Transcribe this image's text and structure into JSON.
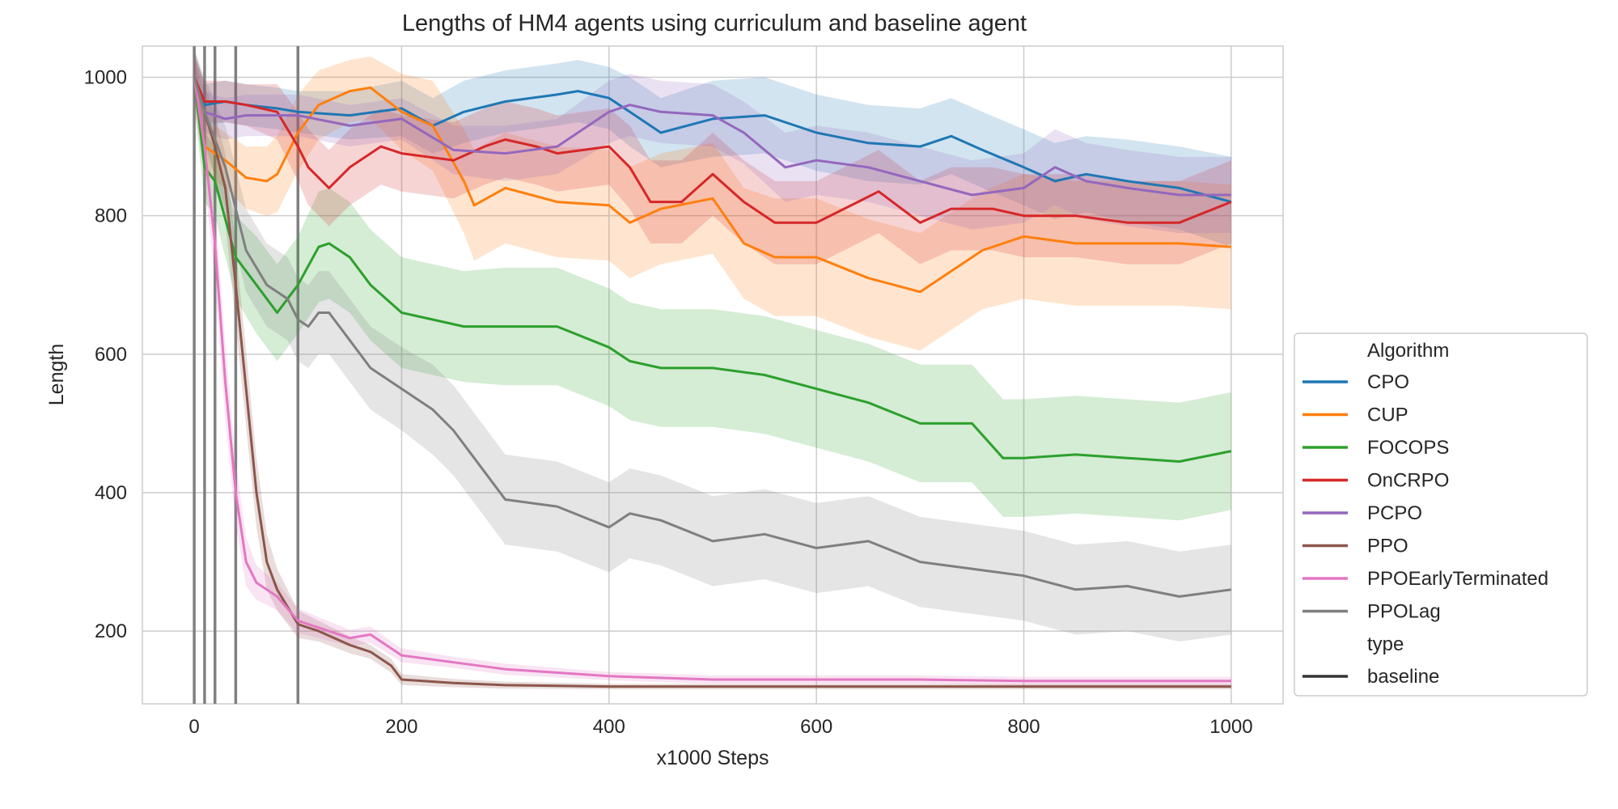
{
  "chart_data": {
    "type": "line",
    "title": "Lengths of HM4 agents using curriculum and baseline agent",
    "xlabel": "x1000 Steps",
    "ylabel": "Length",
    "xlim": [
      -50,
      1050
    ],
    "ylim": [
      95,
      1045
    ],
    "xticks": [
      0,
      200,
      400,
      600,
      800,
      1000
    ],
    "yticks": [
      200,
      400,
      600,
      800,
      1000
    ],
    "xtick_labels": [
      "0",
      "200",
      "400",
      "600",
      "800",
      "1000"
    ],
    "ytick_labels": [
      "200",
      "400",
      "600",
      "800",
      "1000"
    ],
    "grid": true,
    "confidence_bands": true,
    "vertical_lines_x": [
      0,
      10,
      20,
      40,
      100
    ],
    "legend": {
      "placement": "outside right",
      "hue_title": "Algorithm",
      "style_title": "type",
      "style_entries": [
        "baseline"
      ]
    },
    "series": [
      {
        "name": "CPO",
        "color": "#1f77b4",
        "x": [
          0,
          10,
          30,
          50,
          80,
          100,
          150,
          200,
          230,
          260,
          300,
          350,
          370,
          400,
          420,
          450,
          500,
          550,
          600,
          650,
          700,
          730,
          760,
          800,
          830,
          860,
          900,
          950,
          1000
        ],
        "y": [
          1000,
          960,
          965,
          960,
          955,
          950,
          945,
          955,
          930,
          950,
          965,
          975,
          980,
          970,
          950,
          920,
          940,
          945,
          920,
          905,
          900,
          915,
          895,
          870,
          850,
          860,
          850,
          840,
          820
        ],
        "band": [
          40,
          30,
          30,
          30,
          30,
          30,
          35,
          40,
          40,
          45,
          45,
          45,
          45,
          45,
          50,
          50,
          55,
          55,
          55,
          55,
          55,
          55,
          55,
          55,
          55,
          55,
          60,
          60,
          65
        ]
      },
      {
        "name": "CUP",
        "color": "#ff7f0e",
        "x": [
          0,
          10,
          30,
          50,
          70,
          80,
          100,
          120,
          150,
          170,
          200,
          230,
          260,
          270,
          300,
          350,
          400,
          420,
          450,
          500,
          530,
          560,
          600,
          650,
          700,
          730,
          760,
          800,
          850,
          900,
          950,
          1000
        ],
        "y": [
          1000,
          900,
          880,
          855,
          850,
          860,
          920,
          960,
          980,
          985,
          950,
          930,
          850,
          815,
          840,
          820,
          815,
          790,
          810,
          825,
          760,
          740,
          740,
          710,
          690,
          720,
          750,
          770,
          760,
          760,
          760,
          755
        ],
        "band": [
          40,
          40,
          40,
          45,
          50,
          55,
          55,
          50,
          45,
          45,
          55,
          65,
          75,
          80,
          80,
          80,
          80,
          80,
          80,
          80,
          80,
          85,
          85,
          85,
          85,
          85,
          85,
          90,
          90,
          90,
          90,
          90
        ]
      },
      {
        "name": "FOCOPS",
        "color": "#2ca02c",
        "x": [
          0,
          10,
          20,
          40,
          60,
          80,
          100,
          120,
          130,
          150,
          170,
          200,
          230,
          260,
          300,
          350,
          400,
          420,
          450,
          500,
          550,
          600,
          650,
          700,
          750,
          780,
          800,
          850,
          900,
          950,
          1000
        ],
        "y": [
          1000,
          870,
          850,
          740,
          700,
          660,
          700,
          755,
          760,
          740,
          700,
          660,
          650,
          640,
          640,
          640,
          610,
          590,
          580,
          580,
          570,
          550,
          530,
          500,
          500,
          450,
          450,
          455,
          450,
          445,
          460
        ],
        "band": [
          40,
          50,
          50,
          60,
          70,
          70,
          70,
          80,
          80,
          80,
          80,
          80,
          80,
          80,
          85,
          85,
          85,
          85,
          85,
          85,
          85,
          85,
          85,
          85,
          85,
          85,
          85,
          85,
          85,
          85,
          85
        ]
      },
      {
        "name": "OnCRPO",
        "color": "#d62728",
        "x": [
          0,
          10,
          30,
          50,
          80,
          100,
          110,
          130,
          150,
          180,
          200,
          250,
          280,
          300,
          330,
          350,
          400,
          420,
          440,
          470,
          500,
          530,
          560,
          600,
          640,
          660,
          700,
          730,
          770,
          800,
          850,
          900,
          950,
          1000
        ],
        "y": [
          1000,
          965,
          965,
          960,
          950,
          900,
          870,
          840,
          870,
          900,
          890,
          880,
          900,
          910,
          900,
          890,
          900,
          870,
          820,
          820,
          860,
          820,
          790,
          790,
          820,
          835,
          790,
          810,
          810,
          800,
          800,
          790,
          790,
          820
        ],
        "band": [
          30,
          30,
          30,
          30,
          40,
          50,
          55,
          55,
          55,
          55,
          55,
          55,
          55,
          55,
          55,
          55,
          55,
          60,
          60,
          60,
          60,
          60,
          60,
          60,
          60,
          60,
          60,
          60,
          60,
          60,
          60,
          60,
          60,
          60
        ]
      },
      {
        "name": "PCPO",
        "color": "#9467bd",
        "x": [
          0,
          10,
          30,
          50,
          100,
          150,
          200,
          250,
          300,
          350,
          400,
          420,
          450,
          500,
          530,
          570,
          600,
          650,
          700,
          750,
          800,
          830,
          860,
          900,
          950,
          1000
        ],
        "y": [
          1000,
          950,
          940,
          945,
          945,
          930,
          940,
          895,
          890,
          900,
          950,
          960,
          950,
          945,
          920,
          870,
          880,
          870,
          850,
          830,
          840,
          870,
          850,
          840,
          830,
          830
        ],
        "band": [
          30,
          30,
          30,
          30,
          30,
          30,
          30,
          35,
          40,
          40,
          45,
          45,
          45,
          45,
          45,
          50,
          50,
          50,
          50,
          50,
          50,
          55,
          55,
          55,
          55,
          55
        ]
      },
      {
        "name": "PPO",
        "color": "#8c564b",
        "x": [
          0,
          10,
          20,
          30,
          40,
          50,
          60,
          70,
          80,
          100,
          120,
          150,
          170,
          190,
          200,
          250,
          300,
          400,
          500,
          600,
          700,
          800,
          900,
          1000
        ],
        "y": [
          1000,
          950,
          900,
          840,
          700,
          550,
          400,
          300,
          260,
          210,
          200,
          180,
          170,
          150,
          130,
          125,
          122,
          120,
          120,
          120,
          120,
          120,
          120,
          120
        ],
        "band": [
          40,
          40,
          45,
          50,
          55,
          55,
          50,
          40,
          30,
          20,
          15,
          12,
          10,
          10,
          8,
          6,
          5,
          4,
          4,
          4,
          4,
          4,
          4,
          4
        ]
      },
      {
        "name": "PPOEarlyTerminated",
        "color": "#e377c2",
        "x": [
          0,
          10,
          20,
          30,
          40,
          50,
          60,
          70,
          80,
          100,
          120,
          150,
          170,
          190,
          200,
          250,
          300,
          400,
          500,
          600,
          700,
          800,
          900,
          1000
        ],
        "y": [
          1000,
          900,
          760,
          560,
          400,
          300,
          270,
          260,
          250,
          215,
          205,
          190,
          195,
          175,
          165,
          155,
          145,
          135,
          130,
          130,
          130,
          128,
          128,
          128
        ],
        "band": [
          40,
          50,
          55,
          55,
          45,
          35,
          25,
          22,
          20,
          18,
          15,
          12,
          12,
          10,
          10,
          8,
          8,
          6,
          6,
          6,
          6,
          6,
          6,
          6
        ]
      },
      {
        "name": "PPOLag",
        "color": "#7f7f7f",
        "x": [
          0,
          10,
          30,
          50,
          70,
          90,
          100,
          110,
          120,
          130,
          150,
          170,
          200,
          230,
          250,
          280,
          300,
          350,
          400,
          420,
          450,
          500,
          550,
          600,
          650,
          700,
          750,
          800,
          850,
          900,
          950,
          1000
        ],
        "y": [
          1000,
          950,
          870,
          750,
          700,
          680,
          650,
          640,
          660,
          660,
          620,
          580,
          550,
          520,
          490,
          430,
          390,
          380,
          350,
          370,
          360,
          330,
          340,
          320,
          330,
          300,
          290,
          280,
          260,
          265,
          250,
          260
        ],
        "band": [
          40,
          50,
          60,
          60,
          60,
          60,
          60,
          60,
          60,
          60,
          60,
          60,
          60,
          65,
          65,
          65,
          65,
          65,
          65,
          65,
          65,
          65,
          65,
          65,
          65,
          65,
          65,
          65,
          65,
          65,
          65,
          65
        ]
      }
    ]
  }
}
